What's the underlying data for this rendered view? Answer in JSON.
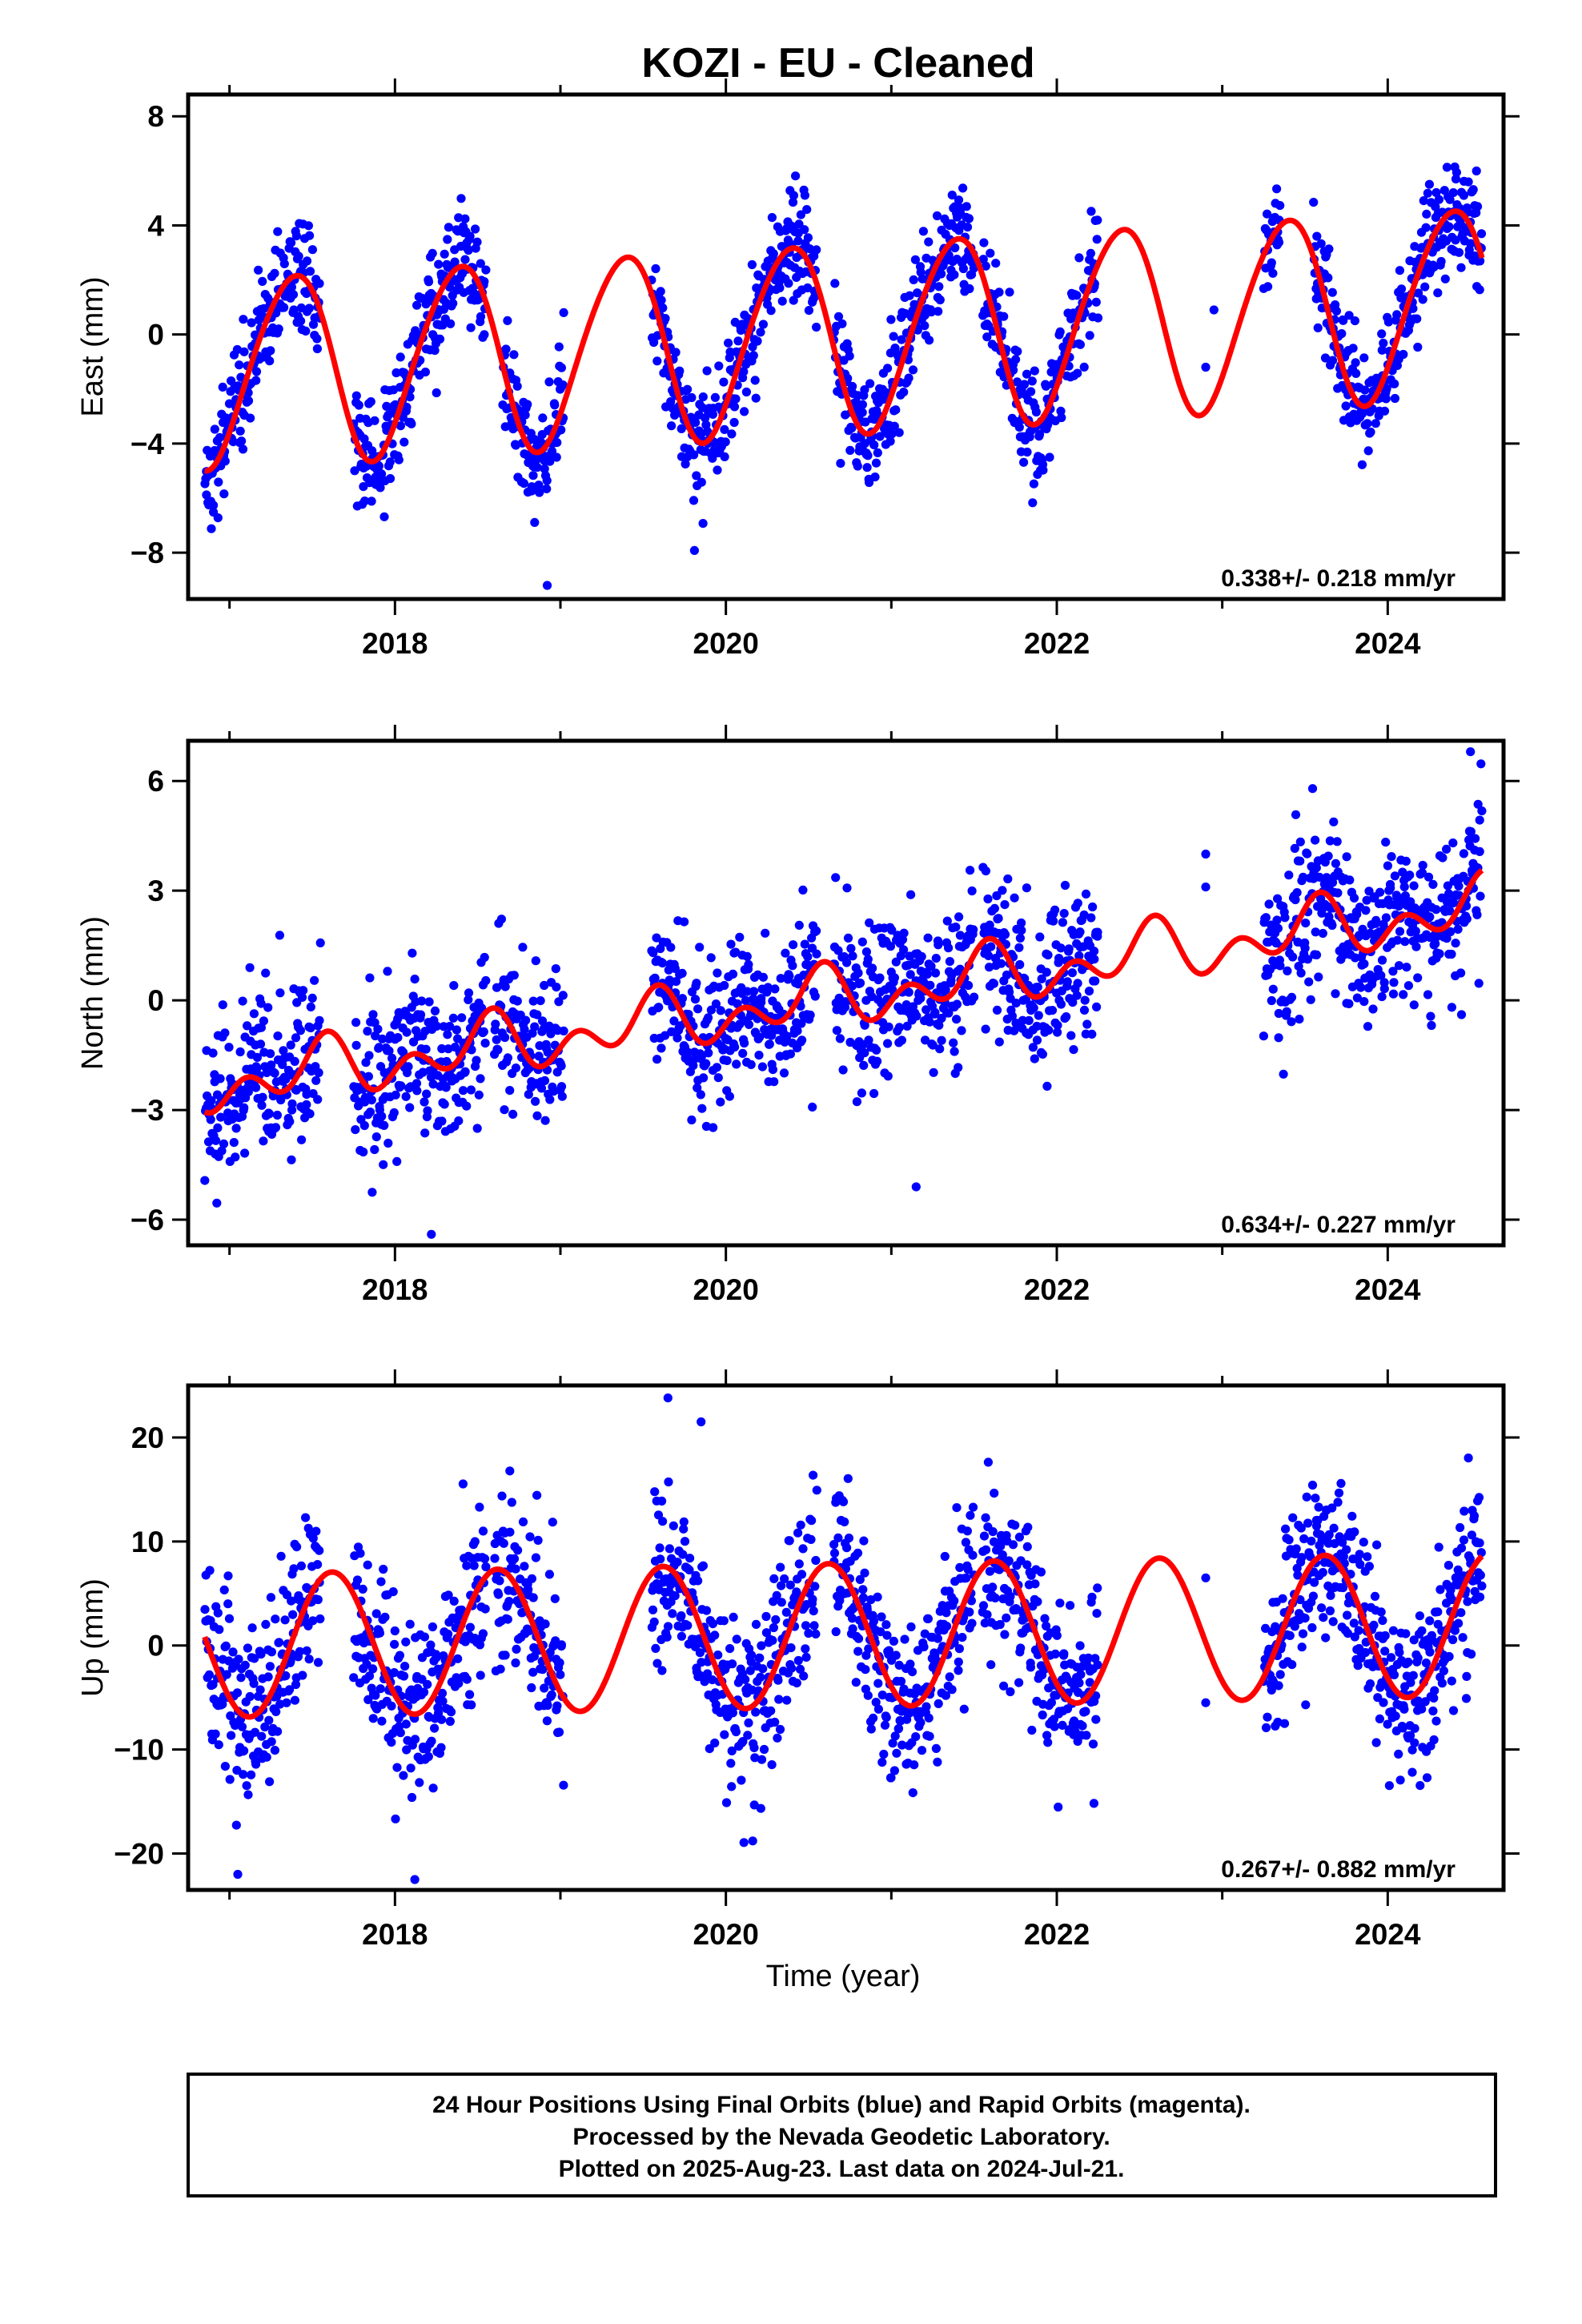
{
  "title": "KOZI  - EU - Cleaned",
  "xlabel": "Time (year)",
  "footer": {
    "lines": [
      "24 Hour Positions Using Final Orbits (blue) and Rapid Orbits (magenta).",
      "Processed by the Nevada Geodetic Laboratory.",
      "Plotted on 2025-Aug-23. Last data on 2024-Jul-21."
    ]
  },
  "colors": {
    "points": "#0000ff",
    "model": "#ff0000",
    "frame": "#000000"
  },
  "chart_data": [
    {
      "type": "scatter",
      "ylabel": "East (mm)",
      "rate": "0.338+/- 0.218 mm/yr",
      "xlim": [
        2016.75,
        2024.7
      ],
      "ylim": [
        -9.7,
        8.8
      ],
      "xticks": [
        2018,
        2020,
        2022,
        2024
      ],
      "yticks": [
        -8,
        -4,
        0,
        4,
        8
      ],
      "yticklabels": [
        "−8",
        "−4",
        "0",
        "4",
        "8"
      ],
      "grid": false,
      "model": {
        "a": -0.3,
        "rate": 0.338,
        "amp": 3.45,
        "peakPhase": 0.38,
        "amp2": 0.3,
        "phase2": 0.05,
        "t0": 2020.0
      },
      "data_segments": [
        [
          2016.85,
          2017.55
        ],
        [
          2017.75,
          2018.55
        ],
        [
          2018.65,
          2019.02
        ],
        [
          2019.55,
          2020.55
        ],
        [
          2020.65,
          2021.5
        ],
        [
          2021.55,
          2022.25
        ],
        [
          2023.25,
          2023.35
        ],
        [
          2023.55,
          2024.57
        ]
      ],
      "extra_points": [
        [
          2022.9,
          -1.2
        ],
        [
          2022.95,
          0.9
        ],
        [
          2018.92,
          -9.2
        ],
        [
          2019.02,
          0.8
        ]
      ],
      "series": [
        {
          "name": "Final Orbits (blue)",
          "noise": 1.05
        }
      ]
    },
    {
      "type": "scatter",
      "ylabel": "North (mm)",
      "rate": "0.634+/- 0.227 mm/yr",
      "xlim": [
        2016.75,
        2024.7
      ],
      "ylim": [
        -6.7,
        7.1
      ],
      "xticks": [
        2018,
        2020,
        2022,
        2024
      ],
      "yticks": [
        -6,
        -3,
        0,
        3,
        6
      ],
      "yticklabels": [
        "−6",
        "−3",
        "0",
        "3",
        "6"
      ],
      "grid": false,
      "model": {
        "a": -0.35,
        "rate": 0.634,
        "amp": 0.5,
        "peakPhase": 0.55,
        "amp2": 0.55,
        "phase2": 0.1,
        "t0": 2020.0
      },
      "data_segments": [
        [
          2016.85,
          2017.55
        ],
        [
          2017.75,
          2018.55
        ],
        [
          2018.6,
          2019.02
        ],
        [
          2019.55,
          2020.55
        ],
        [
          2020.65,
          2021.5
        ],
        [
          2021.55,
          2022.25
        ],
        [
          2023.25,
          2024.57
        ]
      ],
      "extra_points": [
        [
          2022.9,
          4.0
        ],
        [
          2022.9,
          3.1
        ],
        [
          2018.22,
          -6.4
        ],
        [
          2021.15,
          -5.1
        ],
        [
          2024.5,
          6.8
        ]
      ],
      "series": [
        {
          "name": "Final Orbits (blue)",
          "noise": 1.05
        }
      ]
    },
    {
      "type": "scatter",
      "ylabel": "Up (mm)",
      "rate": "0.267+/- 0.882 mm/yr",
      "xlim": [
        2016.75,
        2024.7
      ],
      "ylim": [
        -23.5,
        25.0
      ],
      "xticks": [
        2018,
        2020,
        2022,
        2024
      ],
      "yticks": [
        -20,
        -10,
        0,
        10,
        20
      ],
      "yticklabels": [
        "−20",
        "−10",
        "0",
        "10",
        "20"
      ],
      "grid": false,
      "model": {
        "a": 0.8,
        "rate": 0.267,
        "amp": 6.9,
        "peakPhase": 0.62,
        "amp2": 0.0,
        "phase2": 0.0,
        "t0": 2020.0
      },
      "data_segments": [
        [
          2016.85,
          2017.55
        ],
        [
          2017.75,
          2018.55
        ],
        [
          2018.6,
          2019.02
        ],
        [
          2019.55,
          2020.55
        ],
        [
          2020.65,
          2021.5
        ],
        [
          2021.55,
          2022.25
        ],
        [
          2023.25,
          2024.57
        ]
      ],
      "extra_points": [
        [
          2022.9,
          6.5
        ],
        [
          2022.9,
          -5.5
        ],
        [
          2019.65,
          23.8
        ],
        [
          2019.85,
          21.5
        ],
        [
          2018.12,
          -22.5
        ],
        [
          2017.05,
          -22.0
        ]
      ],
      "series": [
        {
          "name": "Final Orbits (blue)",
          "noise": 4.3
        }
      ]
    }
  ]
}
